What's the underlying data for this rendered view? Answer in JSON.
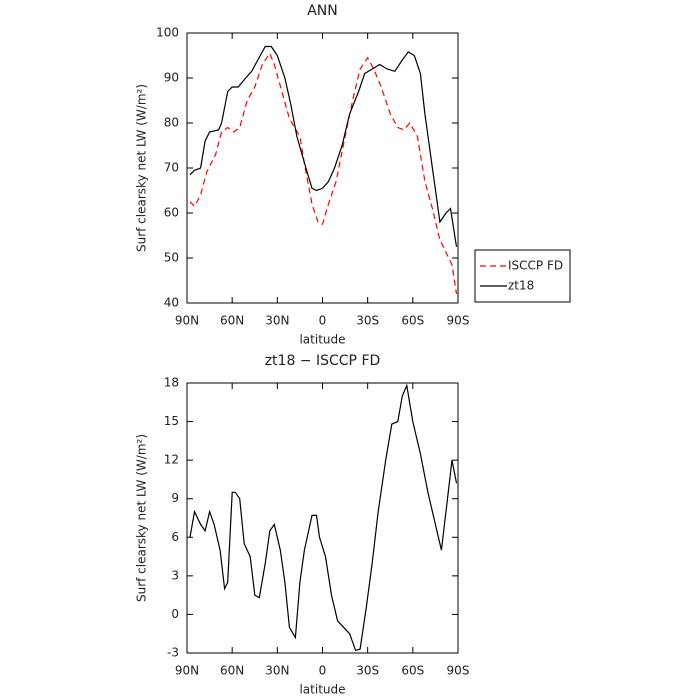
{
  "chart_data": [
    {
      "type": "line",
      "title": "ANN",
      "x_label": "latitude",
      "y_label": "Surf clearsky net LW (W/m²)",
      "xlim": [
        90,
        -90
      ],
      "xticks": [
        {
          "value": 90,
          "label": "90N"
        },
        {
          "value": 60,
          "label": "60N"
        },
        {
          "value": 30,
          "label": "30N"
        },
        0,
        {
          "value": -30,
          "label": "30S"
        },
        {
          "value": -60,
          "label": "60S"
        },
        {
          "value": -90,
          "label": "90S"
        }
      ],
      "ylim": [
        40,
        100
      ],
      "yticks": [
        40,
        50,
        60,
        70,
        80,
        90,
        100
      ],
      "legend": "outside-right",
      "series": [
        {
          "name": "ISCCP FD",
          "color": "#ff0000",
          "dash": "dashed",
          "x": [
            88,
            85,
            81,
            77,
            71,
            67,
            63,
            59,
            55,
            50,
            45,
            40,
            35,
            32,
            27,
            22,
            15,
            12,
            7,
            3,
            0,
            -4,
            -9,
            -15,
            -20,
            -25,
            -30,
            -34,
            -39,
            -45,
            -50,
            -54,
            -58,
            -63,
            -68,
            -73,
            -78,
            -81,
            -86,
            -89
          ],
          "values": [
            62.5,
            61.5,
            64,
            69,
            73,
            78,
            79,
            78,
            79,
            85,
            88,
            93,
            95.5,
            93,
            87,
            81,
            77,
            71,
            62,
            58,
            57.5,
            62,
            67,
            77,
            85,
            92,
            94.5,
            92,
            88,
            82,
            79,
            78.5,
            80,
            77,
            67,
            61,
            54,
            52,
            48.5,
            42
          ]
        },
        {
          "name": "zt18",
          "color": "#000000",
          "dash": "solid",
          "x": [
            88,
            85,
            81,
            78,
            75,
            69,
            67,
            63,
            60,
            56,
            51,
            47,
            43,
            38,
            34,
            30,
            25,
            21,
            17,
            11,
            7,
            4,
            0,
            -4,
            -8,
            -13,
            -18,
            -24,
            -28,
            -33,
            -38,
            -43,
            -48,
            -53,
            -57,
            -61,
            -65,
            -68,
            -73,
            -78,
            -82,
            -85,
            -89
          ],
          "values": [
            68.5,
            69.5,
            70,
            76,
            78,
            78.5,
            80,
            87,
            88,
            88,
            90,
            91.5,
            94,
            97,
            97,
            95,
            90,
            84,
            77,
            70,
            65.5,
            65,
            65.5,
            67,
            70,
            75,
            82,
            87,
            91,
            92,
            93,
            92,
            91.5,
            94,
            95.8,
            95,
            91,
            82,
            70,
            58,
            60,
            61,
            52.5
          ]
        }
      ]
    },
    {
      "type": "line",
      "title": "zt18 − ISCCP FD",
      "x_label": "latitude",
      "y_label": "Surf clearsky net LW (W/m²)",
      "xlim": [
        90,
        -90
      ],
      "xticks": [
        {
          "value": 90,
          "label": "90N"
        },
        {
          "value": 60,
          "label": "60N"
        },
        {
          "value": 30,
          "label": "30N"
        },
        0,
        {
          "value": -30,
          "label": "30S"
        },
        {
          "value": -60,
          "label": "60S"
        },
        {
          "value": -90,
          "label": "90S"
        }
      ],
      "ylim": [
        -3,
        18
      ],
      "yticks": [
        -3,
        0,
        3,
        6,
        9,
        12,
        15,
        18
      ],
      "series": [
        {
          "color": "#000000",
          "dash": "solid",
          "x": [
            88,
            85,
            81,
            78,
            75,
            72,
            68,
            65,
            63,
            60,
            58,
            55,
            52,
            48,
            45,
            42,
            38,
            35,
            32,
            28,
            25,
            22,
            18,
            15,
            12,
            7,
            4,
            2,
            -2,
            -6,
            -10,
            -14,
            -18,
            -22,
            -25,
            -29,
            -33,
            -37,
            -42,
            -46,
            -50,
            -53,
            -56,
            -60,
            -65,
            -70,
            -75,
            -79,
            -83,
            -86,
            -89
          ],
          "values": [
            6,
            8,
            7,
            6.5,
            8,
            7,
            5,
            2,
            2.5,
            9.5,
            9.5,
            9,
            5.5,
            4.5,
            1.5,
            1.3,
            4,
            6.5,
            7,
            5,
            2.5,
            -1,
            -1.8,
            2.5,
            5,
            7.7,
            7.7,
            6,
            4.5,
            1.5,
            -0.5,
            -1,
            -1.5,
            -2.8,
            -2.7,
            0.5,
            4,
            8,
            12,
            14.8,
            15,
            17,
            17.8,
            15,
            12.5,
            9.5,
            7,
            5,
            9,
            12,
            10.2
          ]
        }
      ]
    }
  ]
}
